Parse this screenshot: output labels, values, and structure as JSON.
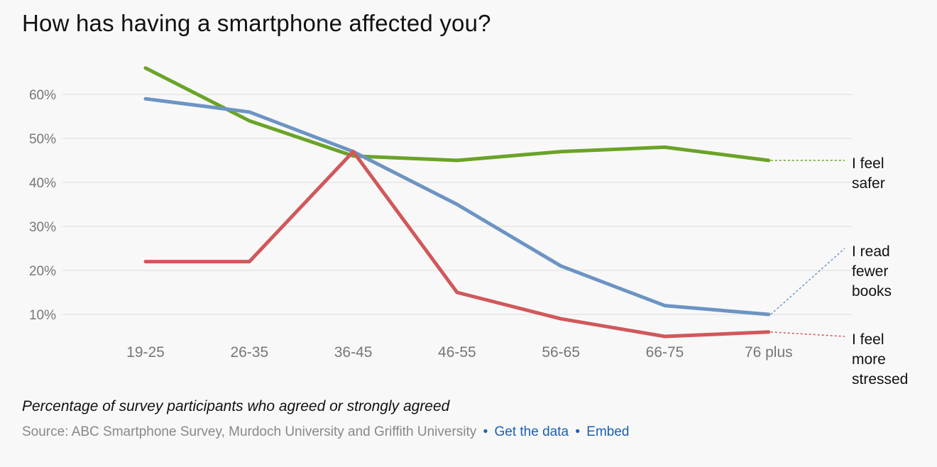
{
  "chart_data": {
    "type": "line",
    "title": "How has having a smartphone affected you?",
    "subtitle": "Percentage of survey participants who agreed or strongly agreed",
    "categories": [
      "19-25",
      "26-35",
      "36-45",
      "46-55",
      "56-65",
      "66-75",
      "76 plus"
    ],
    "y_ticks": [
      {
        "value": 10,
        "label": "10%"
      },
      {
        "value": 20,
        "label": "20%"
      },
      {
        "value": 30,
        "label": "30%"
      },
      {
        "value": 40,
        "label": "40%"
      },
      {
        "value": 50,
        "label": "50%"
      },
      {
        "value": 60,
        "label": "60%"
      }
    ],
    "ylim": [
      0,
      70
    ],
    "grid": true,
    "series": [
      {
        "name": "I feel safer",
        "label_lines": [
          "I feel",
          "safer"
        ],
        "color": "#6aa328",
        "values": [
          66,
          54,
          46,
          45,
          47,
          48,
          45
        ],
        "label_value": 45
      },
      {
        "name": "I read fewer books",
        "label_lines": [
          "I read",
          "fewer",
          "books"
        ],
        "color": "#6c94c3",
        "values": [
          59,
          56,
          47,
          35,
          21,
          12,
          10
        ],
        "label_value": 25
      },
      {
        "name": "I feel more stressed",
        "label_lines": [
          "I feel",
          "more",
          "stressed"
        ],
        "color": "#d0585b",
        "values": [
          22,
          22,
          47,
          15,
          9,
          5,
          6
        ],
        "label_value": 5
      }
    ]
  },
  "footer": {
    "source": "Source: ABC Smartphone Survey, Murdoch University and Griffith University",
    "separator": "•",
    "get_data_link": "Get the data",
    "embed_link": "Embed"
  }
}
